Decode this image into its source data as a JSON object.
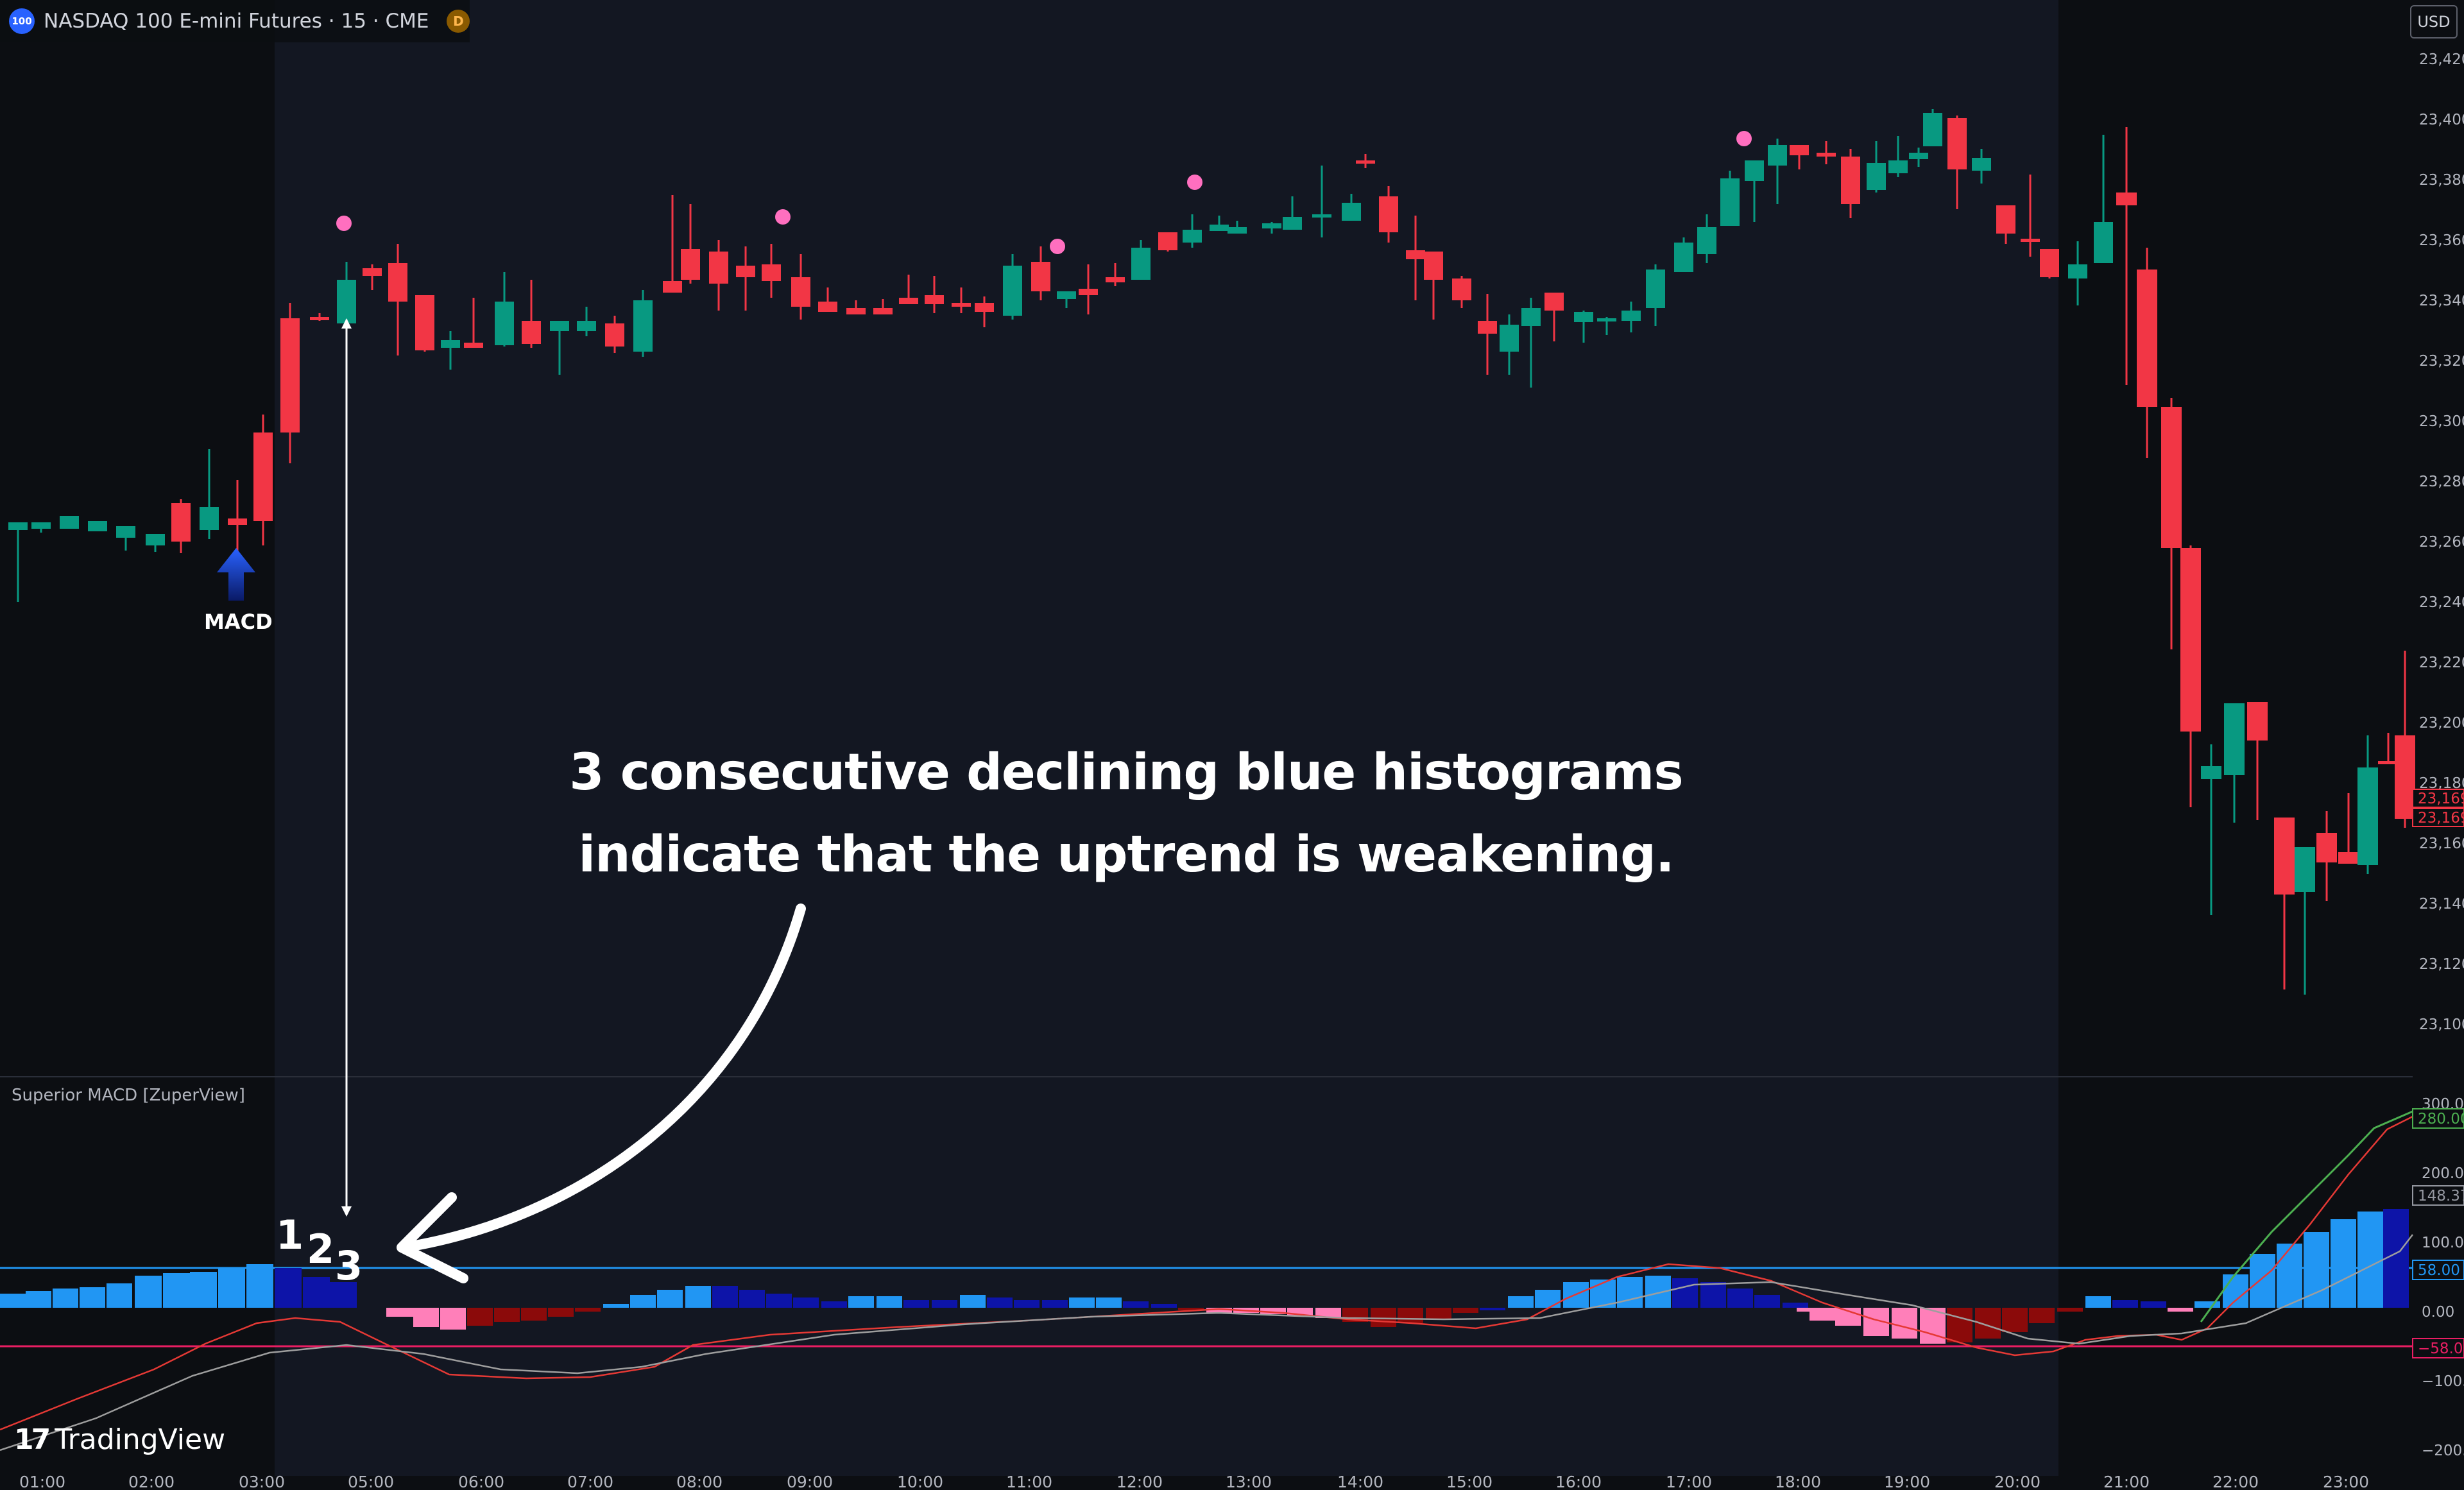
{
  "header": {
    "symbol_badge": "100",
    "title": "NASDAQ 100 E-mini Futures · 15 · CME",
    "data_badge": "D"
  },
  "price_axis": {
    "currency": "USD",
    "ticks": [
      "23,420",
      "23,400",
      "23,380",
      "23,360",
      "23,340",
      "23,320",
      "23,300",
      "23,280",
      "23,260",
      "23,240",
      "23,220",
      "23,200",
      "23,180",
      "23,160",
      "23,140",
      "23,120",
      "23,100"
    ],
    "last_price_labels": [
      "23,169",
      "23,169"
    ]
  },
  "indicator": {
    "title": "Superior MACD [ZuperView]",
    "ticks": [
      "300.00",
      "200.00",
      "100.00",
      "0.00",
      "−100.00",
      "−200.00"
    ],
    "value_labels": [
      {
        "text": "280.00",
        "color": "#4caf50"
      },
      {
        "text": "148.37",
        "color": "#9598a1"
      },
      {
        "text": "58.00",
        "color": "#2196f3"
      },
      {
        "text": "−58.00",
        "color": "#e91e63"
      }
    ]
  },
  "time_axis": {
    "labels": [
      "01:00",
      "02:00",
      "03:00",
      "05:00",
      "06:00",
      "07:00",
      "08:00",
      "09:00",
      "10:00",
      "11:00",
      "12:00",
      "13:00",
      "14:00",
      "15:00",
      "16:00",
      "17:00",
      "18:00",
      "19:00",
      "20:00",
      "21:00",
      "22:00",
      "23:00"
    ]
  },
  "annotation": {
    "line1": "3 consecutive declining blue histograms",
    "line2": "indicate that the uptrend is weakening."
  },
  "markers": {
    "macd_signal_label": "MACD",
    "count_labels": [
      "1",
      "2",
      "3"
    ]
  },
  "branding": {
    "logo_mark": "17",
    "logo_text": "TradingView"
  },
  "colors": {
    "up": "#089981",
    "down": "#f23645",
    "hist_bright_blue": "#2196f3",
    "hist_dark_blue": "#0d14a8",
    "hist_pink": "#ff7fb9",
    "hist_dark_red": "#8b0a0a",
    "session_bg": "#131722",
    "off_session_bg": "#0c0e12"
  }
}
